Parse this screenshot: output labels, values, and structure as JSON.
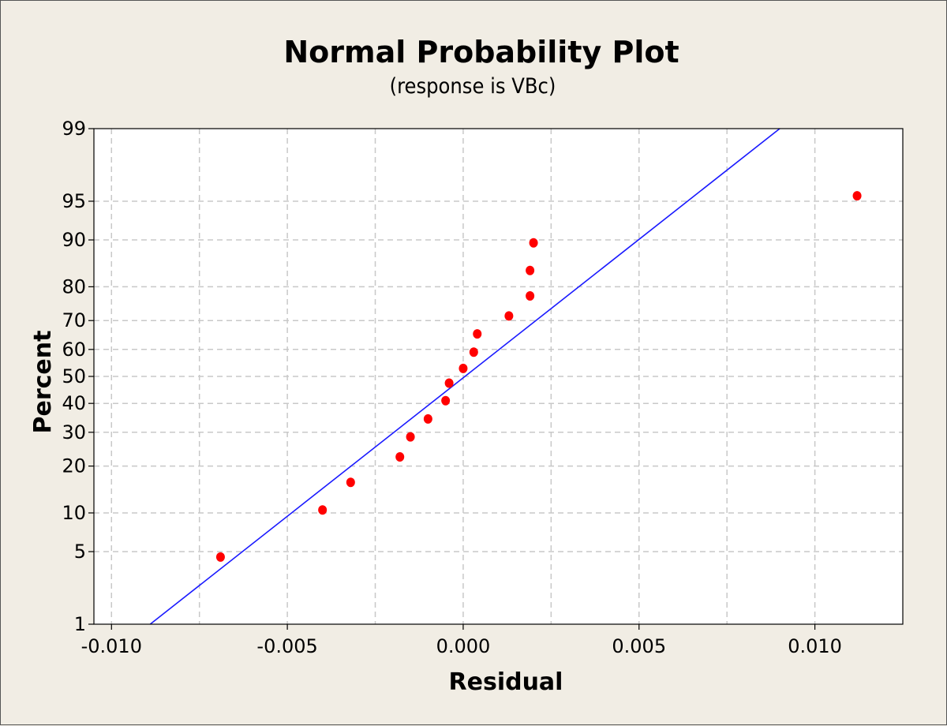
{
  "chart_data": {
    "type": "scatter",
    "title": "Normal Probability Plot",
    "subtitle": "(response is VBc)",
    "xlabel": "Residual",
    "ylabel": "Percent",
    "y_scale": "normal probability",
    "xlim": [
      -0.0105,
      0.0125
    ],
    "ylim": [
      1,
      99
    ],
    "x_ticks": [
      -0.01,
      -0.005,
      0.0,
      0.005,
      0.01
    ],
    "x_tick_labels": [
      "-0.010",
      "-0.005",
      "0.000",
      "0.005",
      "0.010"
    ],
    "x_minor_gridlines": [
      -0.0075,
      -0.0025,
      0.0025,
      0.0075
    ],
    "y_ticks": [
      1,
      5,
      10,
      20,
      30,
      40,
      50,
      60,
      70,
      80,
      90,
      95,
      99
    ],
    "y_tick_labels": [
      "1",
      "5",
      "10",
      "20",
      "30",
      "40",
      "50",
      "60",
      "70",
      "80",
      "90",
      "95",
      "99"
    ],
    "grid": true,
    "points": [
      {
        "x": -0.0069,
        "y": 4.5
      },
      {
        "x": -0.004,
        "y": 10.5
      },
      {
        "x": -0.0032,
        "y": 16
      },
      {
        "x": -0.0018,
        "y": 22.5
      },
      {
        "x": -0.0015,
        "y": 28.5
      },
      {
        "x": -0.001,
        "y": 34.5
      },
      {
        "x": -0.0005,
        "y": 41
      },
      {
        "x": -0.0004,
        "y": 47.5
      },
      {
        "x": 0.0,
        "y": 53
      },
      {
        "x": 0.0003,
        "y": 59
      },
      {
        "x": 0.0004,
        "y": 65.5
      },
      {
        "x": 0.0013,
        "y": 71.5
      },
      {
        "x": 0.0019,
        "y": 77.5
      },
      {
        "x": 0.0019,
        "y": 84
      },
      {
        "x": 0.002,
        "y": 89.5
      },
      {
        "x": 0.0112,
        "y": 95.5
      }
    ],
    "fit_line": [
      {
        "x": -0.0089,
        "y": 1
      },
      {
        "x": 0.009,
        "y": 99
      }
    ],
    "colors": {
      "points": "#ff0000",
      "fit_line": "#1a1aff",
      "grid": "#c8c8c8",
      "plot_background": "#ffffff",
      "page_background": "#f1ede4"
    }
  }
}
